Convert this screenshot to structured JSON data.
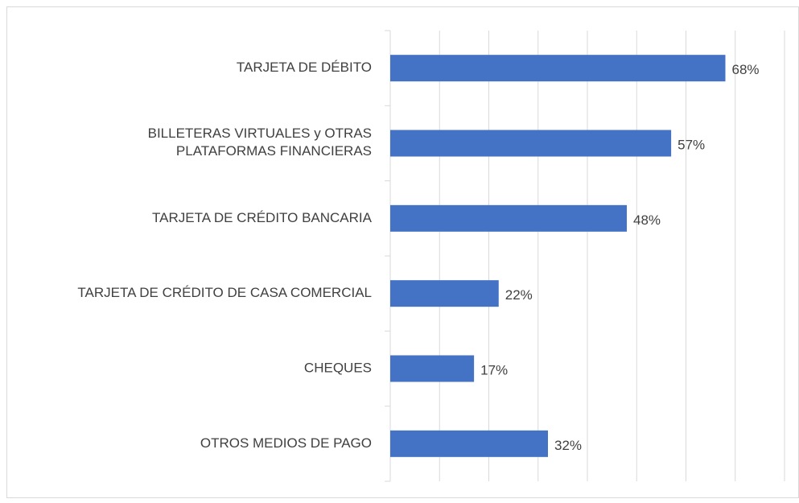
{
  "chart_data": {
    "type": "barh",
    "categories": [
      "TARJETA DE DÉBITO",
      "BILLETERAS VIRTUALES y OTRAS\nPLATAFORMAS FINANCIERAS",
      "TARJETA DE CRÉDITO BANCARIA",
      "TARJETA DE CRÉDITO DE CASA COMERCIAL",
      "CHEQUES",
      "OTROS MEDIOS DE PAGO"
    ],
    "values": [
      68,
      57,
      48,
      22,
      17,
      32
    ],
    "value_labels": [
      "68%",
      "57%",
      "48%",
      "22%",
      "17%",
      "32%"
    ],
    "color": "#4472c4",
    "xlim": [
      0,
      80
    ],
    "xticks": [
      0,
      10,
      20,
      30,
      40,
      50,
      60,
      70,
      80
    ],
    "grid": true
  }
}
